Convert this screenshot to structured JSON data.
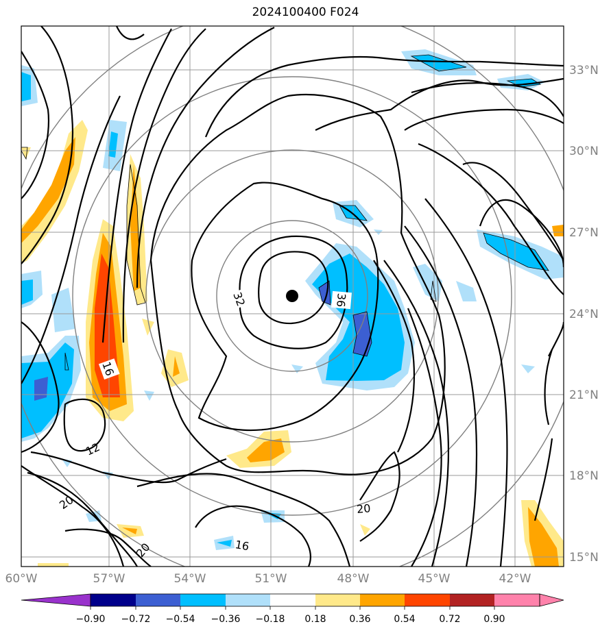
{
  "title": "2024100400 F024",
  "lat_labels": [
    "33°N",
    "30°N",
    "27°N",
    "24°N",
    "21°N",
    "18°N",
    "15°N"
  ],
  "lon_labels": [
    "60°W",
    "57°W",
    "54°W",
    "51°W",
    "48°W",
    "45°W",
    "42°W"
  ],
  "contour_labels": [
    "32",
    "36",
    "16",
    "12",
    "20",
    "20",
    "20",
    "16"
  ],
  "colorbar": {
    "ticks": [
      "−0.90",
      "−0.72",
      "−0.54",
      "−0.36",
      "−0.18",
      "0.18",
      "0.36",
      "0.54",
      "0.72",
      "0.90"
    ],
    "colors": [
      "#9932cc",
      "#00008b",
      "#3c5fd2",
      "#00bfff",
      "#b0e0fa",
      "#ffffff",
      "#ffe98a",
      "#ffa500",
      "#ff4500",
      "#b22222",
      "#ff82ab"
    ]
  },
  "center_marker": "storm-center"
}
